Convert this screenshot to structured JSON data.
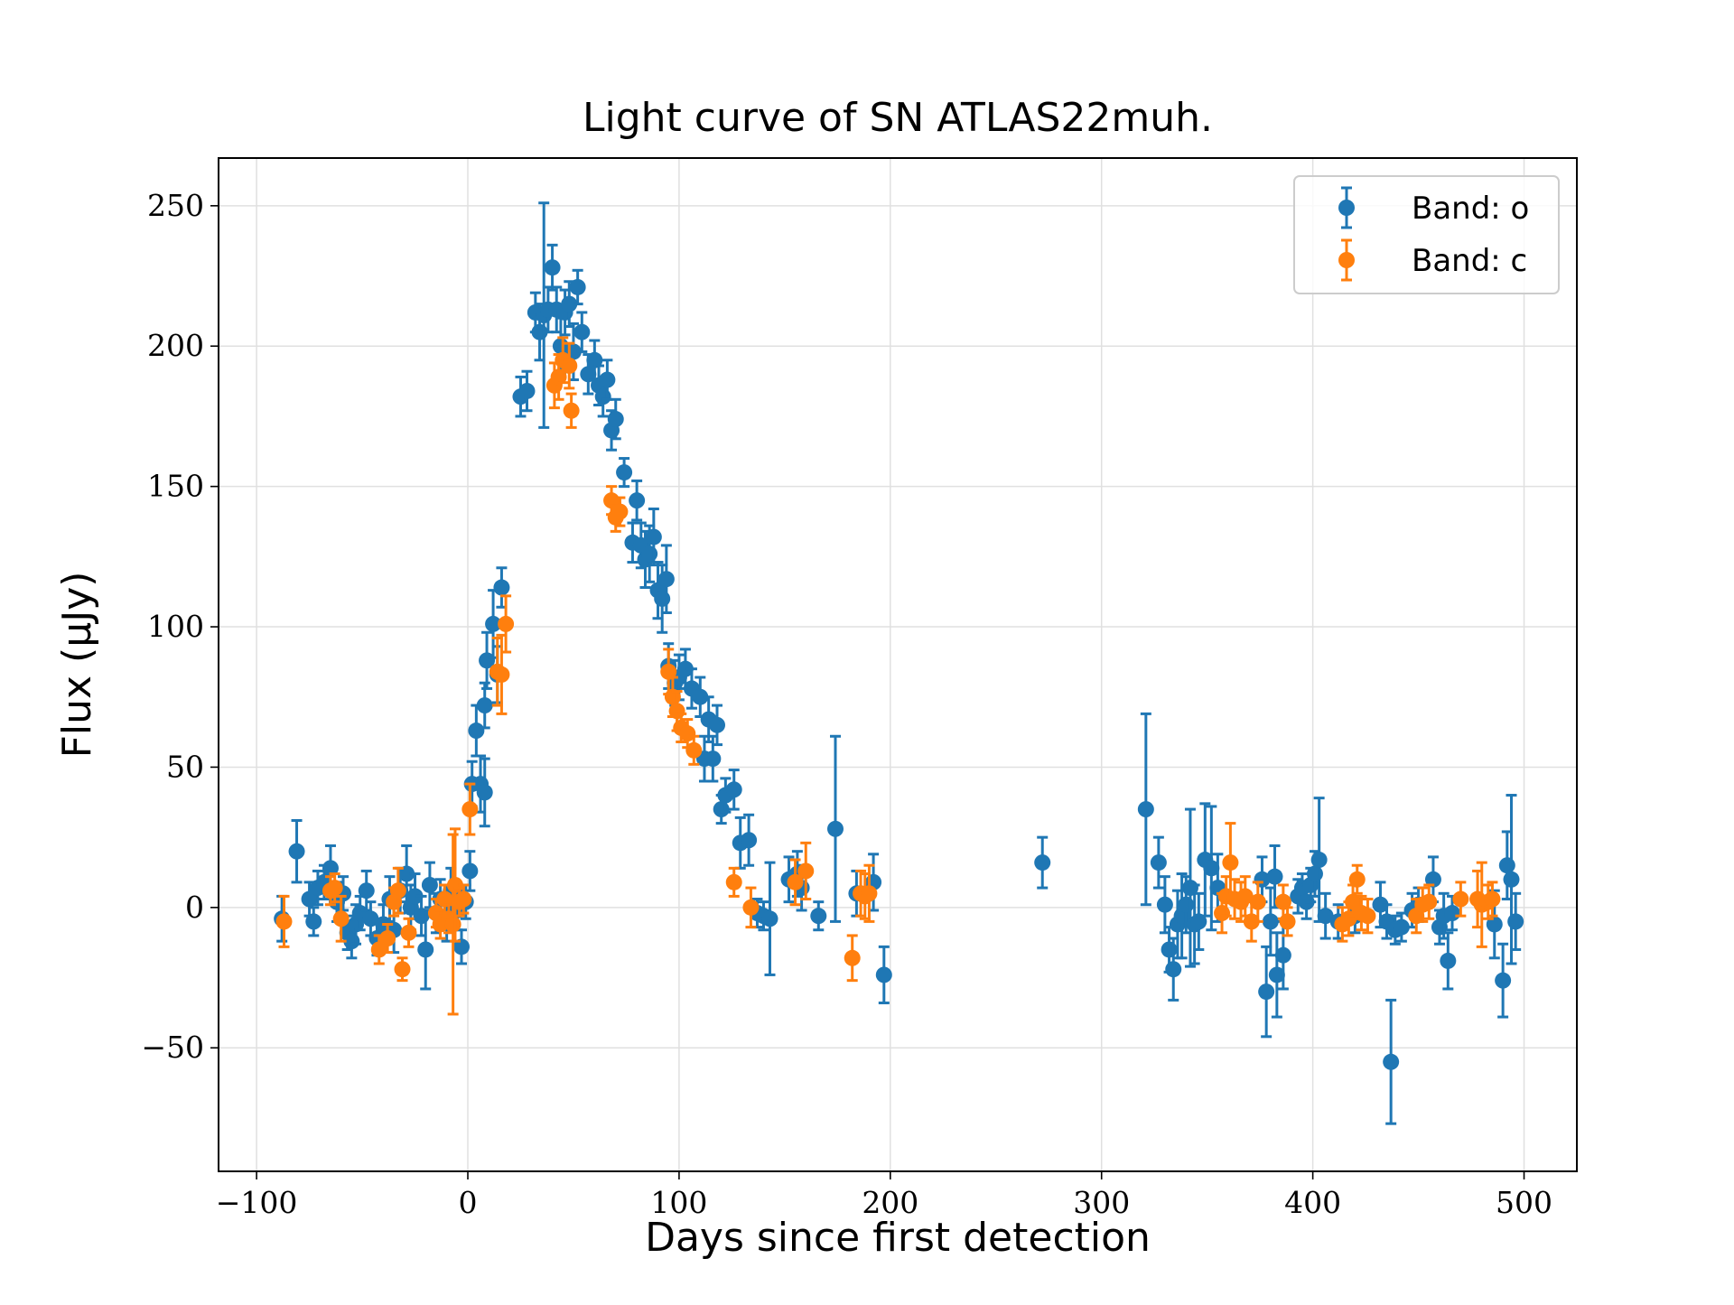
{
  "chart_data": {
    "type": "scatter",
    "title": "Light curve of SN ATLAS22muh.",
    "xlabel": "Days since first detection",
    "ylabel": "Flux (μJy)",
    "xlim": [
      -118,
      525
    ],
    "ylim": [
      -94,
      267
    ],
    "xticks": [
      -100,
      0,
      100,
      200,
      300,
      400,
      500
    ],
    "xtick_labels": [
      "−100",
      "0",
      "100",
      "200",
      "300",
      "400",
      "500"
    ],
    "yticks": [
      -50,
      0,
      50,
      100,
      150,
      200,
      250
    ],
    "ytick_labels": [
      "−50",
      "0",
      "50",
      "100",
      "150",
      "200",
      "250"
    ],
    "grid": true,
    "legend_position": "top-right",
    "series": [
      {
        "name": "Band: o",
        "color": "#1f77b4",
        "points": [
          [
            -88,
            -4,
            8
          ],
          [
            -81,
            20,
            11
          ],
          [
            -75,
            3,
            6
          ],
          [
            -73,
            -5,
            5
          ],
          [
            -71,
            7,
            6
          ],
          [
            -68,
            9,
            6
          ],
          [
            -65,
            14,
            8
          ],
          [
            -62,
            2,
            7
          ],
          [
            -59,
            5,
            6
          ],
          [
            -57,
            -9,
            6
          ],
          [
            -55,
            -12,
            6
          ],
          [
            -53,
            -6,
            7
          ],
          [
            -51,
            -2,
            6
          ],
          [
            -48,
            6,
            7
          ],
          [
            -46,
            -4,
            6
          ],
          [
            -43,
            -11,
            6
          ],
          [
            -40,
            -6,
            7
          ],
          [
            -37,
            3,
            8
          ],
          [
            -35,
            -8,
            8
          ],
          [
            -32,
            6,
            8
          ],
          [
            -29,
            12,
            10
          ],
          [
            -27,
            0,
            8
          ],
          [
            -25,
            4,
            8
          ],
          [
            -22,
            -3,
            7
          ],
          [
            -20,
            -15,
            14
          ],
          [
            -18,
            8,
            8
          ],
          [
            -15,
            -2,
            7
          ],
          [
            -13,
            3,
            7
          ],
          [
            -10,
            -5,
            7
          ],
          [
            -8,
            6,
            8
          ],
          [
            -5,
            -1,
            7
          ],
          [
            -3,
            -14,
            6
          ],
          [
            -1,
            2,
            6
          ],
          [
            1,
            13,
            7
          ],
          [
            2,
            44,
            8
          ],
          [
            4,
            63,
            9
          ],
          [
            6,
            44,
            10
          ],
          [
            8,
            41,
            12
          ],
          [
            8,
            72,
            8
          ],
          [
            9,
            88,
            10
          ],
          [
            12,
            101,
            12
          ],
          [
            14,
            83,
            10
          ],
          [
            16,
            114,
            7
          ],
          [
            25,
            182,
            7
          ],
          [
            28,
            184,
            7
          ],
          [
            32,
            212,
            7
          ],
          [
            34,
            205,
            10
          ],
          [
            36,
            211,
            40
          ],
          [
            38,
            213,
            8
          ],
          [
            40,
            228,
            8
          ],
          [
            42,
            213,
            8
          ],
          [
            44,
            200,
            10
          ],
          [
            46,
            212,
            8
          ],
          [
            48,
            215,
            8
          ],
          [
            50,
            198,
            10
          ],
          [
            52,
            221,
            6
          ],
          [
            54,
            205,
            7
          ],
          [
            57,
            190,
            7
          ],
          [
            60,
            195,
            7
          ],
          [
            62,
            186,
            7
          ],
          [
            64,
            182,
            7
          ],
          [
            66,
            188,
            7
          ],
          [
            68,
            170,
            7
          ],
          [
            70,
            174,
            7
          ],
          [
            74,
            155,
            5
          ],
          [
            78,
            130,
            7
          ],
          [
            80,
            145,
            7
          ],
          [
            82,
            129,
            8
          ],
          [
            84,
            124,
            10
          ],
          [
            86,
            126,
            10
          ],
          [
            88,
            132,
            10
          ],
          [
            90,
            113,
            10
          ],
          [
            92,
            110,
            12
          ],
          [
            94,
            117,
            12
          ],
          [
            95,
            86,
            8
          ],
          [
            98,
            80,
            8
          ],
          [
            100,
            82,
            8
          ],
          [
            103,
            85,
            7
          ],
          [
            106,
            78,
            7
          ],
          [
            110,
            75,
            7
          ],
          [
            112,
            53,
            8
          ],
          [
            114,
            67,
            8
          ],
          [
            116,
            53,
            8
          ],
          [
            118,
            65,
            7
          ],
          [
            120,
            35,
            5
          ],
          [
            122,
            40,
            6
          ],
          [
            126,
            42,
            7
          ],
          [
            129,
            23,
            9
          ],
          [
            133,
            24,
            9
          ],
          [
            137,
            -2,
            5
          ],
          [
            140,
            -3,
            5
          ],
          [
            143,
            -4,
            20
          ],
          [
            152,
            10,
            8
          ],
          [
            156,
            12,
            8
          ],
          [
            158,
            7,
            8
          ],
          [
            166,
            -3,
            5
          ],
          [
            174,
            28,
            33
          ],
          [
            184,
            5,
            8
          ],
          [
            192,
            9,
            10
          ],
          [
            197,
            -24,
            10
          ],
          [
            272,
            16,
            9
          ],
          [
            321,
            35,
            34
          ],
          [
            327,
            16,
            9
          ],
          [
            330,
            1,
            10
          ],
          [
            332,
            -15,
            8
          ],
          [
            334,
            -22,
            11
          ],
          [
            336,
            -6,
            12
          ],
          [
            338,
            -3,
            15
          ],
          [
            340,
            1,
            10
          ],
          [
            342,
            7,
            28
          ],
          [
            344,
            -6,
            14
          ],
          [
            346,
            -5,
            10
          ],
          [
            349,
            17,
            20
          ],
          [
            352,
            14,
            22
          ],
          [
            355,
            7,
            12
          ],
          [
            376,
            10,
            8
          ],
          [
            378,
            -30,
            16
          ],
          [
            380,
            -5,
            12
          ],
          [
            382,
            11,
            11
          ],
          [
            383,
            -24,
            15
          ],
          [
            386,
            -17,
            12
          ],
          [
            393,
            4,
            6
          ],
          [
            395,
            7,
            5
          ],
          [
            397,
            2,
            6
          ],
          [
            399,
            8,
            6
          ],
          [
            401,
            12,
            8
          ],
          [
            403,
            17,
            22
          ],
          [
            406,
            -3,
            8
          ],
          [
            412,
            -5,
            6
          ],
          [
            420,
            -3,
            6
          ],
          [
            432,
            1,
            8
          ],
          [
            435,
            -5,
            6
          ],
          [
            437,
            -55,
            22
          ],
          [
            439,
            -8,
            5
          ],
          [
            442,
            -7,
            5
          ],
          [
            447,
            -1,
            6
          ],
          [
            450,
            1,
            6
          ],
          [
            457,
            10,
            8
          ],
          [
            460,
            -7,
            6
          ],
          [
            462,
            -3,
            8
          ],
          [
            464,
            -19,
            10
          ],
          [
            466,
            -2,
            6
          ],
          [
            486,
            -6,
            12
          ],
          [
            490,
            -26,
            13
          ],
          [
            492,
            15,
            12
          ],
          [
            494,
            10,
            30
          ],
          [
            496,
            -5,
            10
          ]
        ]
      },
      {
        "name": "Band: c",
        "color": "#ff7f0e",
        "points": [
          [
            -87,
            -5,
            9
          ],
          [
            -65,
            6,
            5
          ],
          [
            -63,
            7,
            5
          ],
          [
            -60,
            -4,
            8
          ],
          [
            -42,
            -15,
            5
          ],
          [
            -38,
            -11,
            5
          ],
          [
            -35,
            2,
            5
          ],
          [
            -33,
            6,
            8
          ],
          [
            -31,
            -22,
            4
          ],
          [
            -28,
            -9,
            5
          ],
          [
            -15,
            -2,
            5
          ],
          [
            -13,
            -6,
            5
          ],
          [
            -11,
            3,
            5
          ],
          [
            -9,
            -4,
            5
          ],
          [
            -7,
            -6,
            32
          ],
          [
            -6,
            8,
            20
          ],
          [
            -4,
            2,
            5
          ],
          [
            -2,
            3,
            5
          ],
          [
            1,
            35,
            9
          ],
          [
            14,
            84,
            12
          ],
          [
            16,
            83,
            14
          ],
          [
            18,
            101,
            10
          ],
          [
            41,
            186,
            8
          ],
          [
            43,
            189,
            8
          ],
          [
            45,
            195,
            8
          ],
          [
            48,
            193,
            8
          ],
          [
            49,
            177,
            6
          ],
          [
            68,
            145,
            5
          ],
          [
            70,
            139,
            5
          ],
          [
            72,
            141,
            5
          ],
          [
            95,
            84,
            8
          ],
          [
            97,
            75,
            7
          ],
          [
            99,
            70,
            7
          ],
          [
            101,
            64,
            5
          ],
          [
            104,
            62,
            5
          ],
          [
            107,
            56,
            5
          ],
          [
            126,
            9,
            5
          ],
          [
            134,
            0,
            7
          ],
          [
            155,
            9,
            8
          ],
          [
            160,
            13,
            10
          ],
          [
            182,
            -18,
            8
          ],
          [
            186,
            5,
            8
          ],
          [
            188,
            4,
            8
          ],
          [
            190,
            5,
            10
          ],
          [
            357,
            -2,
            7
          ],
          [
            359,
            4,
            7
          ],
          [
            361,
            16,
            14
          ],
          [
            363,
            3,
            7
          ],
          [
            366,
            2,
            7
          ],
          [
            368,
            4,
            7
          ],
          [
            371,
            -5,
            7
          ],
          [
            374,
            2,
            7
          ],
          [
            386,
            2,
            6
          ],
          [
            388,
            -5,
            5
          ],
          [
            414,
            -6,
            6
          ],
          [
            417,
            -4,
            6
          ],
          [
            419,
            2,
            6
          ],
          [
            421,
            10,
            5
          ],
          [
            423,
            -2,
            6
          ],
          [
            426,
            -3,
            6
          ],
          [
            449,
            -3,
            6
          ],
          [
            452,
            1,
            6
          ],
          [
            455,
            2,
            6
          ],
          [
            470,
            3,
            6
          ],
          [
            478,
            3,
            10
          ],
          [
            480,
            1,
            15
          ],
          [
            483,
            2,
            6
          ],
          [
            485,
            3,
            6
          ]
        ]
      }
    ]
  }
}
